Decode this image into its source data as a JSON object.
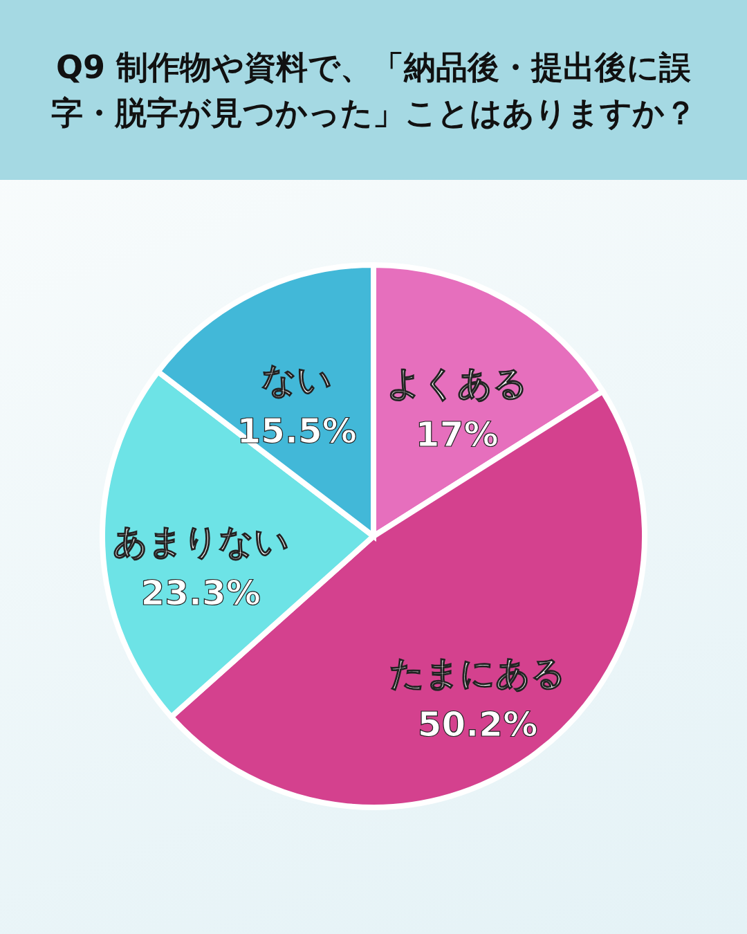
{
  "chart_data": {
    "type": "pie",
    "title": "Q9 制作物や資料で、「納品後・提出後に誤字・脱字が見つかった」ことはありますか？",
    "categories": [
      "よくある",
      "たまにある",
      "あまりない",
      "ない"
    ],
    "values": [
      17,
      50.2,
      23.3,
      15.5
    ],
    "colors": [
      "#e66fbd",
      "#d4418e",
      "#6de3e6",
      "#42b8d8"
    ],
    "value_labels": [
      "17%",
      "50.2%",
      "23.3%",
      "15.5%"
    ]
  }
}
